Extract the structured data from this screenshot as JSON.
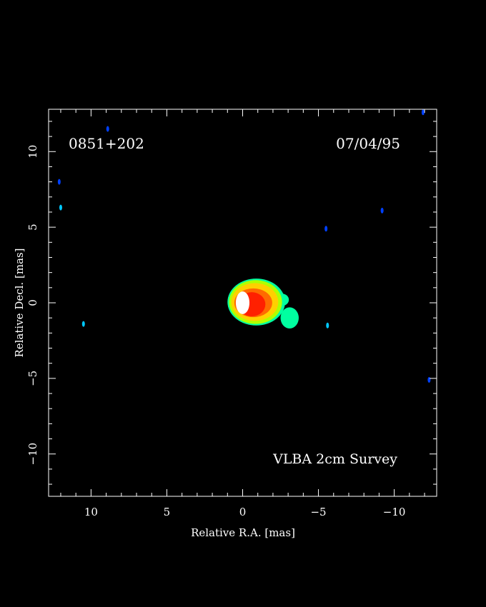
{
  "chart_data": {
    "type": "heatmap",
    "source_name": "0851+202",
    "date": "07/04/95",
    "survey": "VLBA 2cm Survey",
    "xlabel": "Relative R.A. [mas]",
    "ylabel": "Relative Decl. [mas]",
    "xlim": [
      12.8,
      -12.8
    ],
    "ylim": [
      -12.8,
      12.8
    ],
    "xticks": [
      10,
      5,
      0,
      -5,
      -10
    ],
    "yticks": [
      10,
      5,
      0,
      -5,
      -10
    ],
    "x_tick_labels": [
      "10",
      "5",
      "0",
      "−5",
      "−10"
    ],
    "y_tick_labels": [
      "10",
      "5",
      "0",
      "−5",
      "−10"
    ],
    "minor_tick_step": 1,
    "grid": false,
    "colormap": [
      "#0040ff",
      "#00c8ff",
      "#00ffa0",
      "#b0ff00",
      "#ffd000",
      "#ff6a00",
      "#ff2000",
      "#ffffff"
    ],
    "features": [
      {
        "name": "core",
        "x": 0.0,
        "y": 0.0,
        "rx": 0.45,
        "ry": 0.75,
        "level": 7
      },
      {
        "name": "inner-jet",
        "x": -0.6,
        "y": -0.1,
        "rx": 0.9,
        "ry": 0.8,
        "level": 6
      },
      {
        "name": "jet-body",
        "x": -0.7,
        "y": 0.0,
        "rx": 1.25,
        "ry": 0.95,
        "level": 5
      },
      {
        "name": "jet-envelope",
        "x": -0.8,
        "y": 0.05,
        "rx": 1.55,
        "ry": 1.25,
        "level": 4
      },
      {
        "name": "jet-outer",
        "x": -0.85,
        "y": 0.05,
        "rx": 1.75,
        "ry": 1.45,
        "level": 3
      },
      {
        "name": "jet-faint",
        "x": -0.9,
        "y": 0.05,
        "rx": 1.9,
        "ry": 1.55,
        "level": 2
      },
      {
        "name": "jet-extension",
        "x": -2.6,
        "y": 0.2,
        "rx": 0.45,
        "ry": 0.4,
        "level": 2
      },
      {
        "name": "jet-tail",
        "x": -3.1,
        "y": -1.0,
        "rx": 0.6,
        "ry": 0.7,
        "level": 2
      },
      {
        "name": "secondary-peak",
        "x": -1.0,
        "y": 0.0,
        "rx": 0.12,
        "ry": 0.12,
        "level": 6
      }
    ],
    "noise_spots": [
      {
        "x": 12.0,
        "y": 6.3,
        "level": 1
      },
      {
        "x": 12.1,
        "y": 8.0,
        "level": 0
      },
      {
        "x": 8.9,
        "y": 11.5,
        "level": 0
      },
      {
        "x": 10.5,
        "y": -1.4,
        "level": 1
      },
      {
        "x": -5.6,
        "y": -1.5,
        "level": 1
      },
      {
        "x": -9.2,
        "y": 6.1,
        "level": 0
      },
      {
        "x": -12.3,
        "y": -5.1,
        "level": 0
      },
      {
        "x": -5.5,
        "y": 4.9,
        "level": 0
      },
      {
        "x": -11.9,
        "y": 12.6,
        "level": 0
      }
    ]
  }
}
